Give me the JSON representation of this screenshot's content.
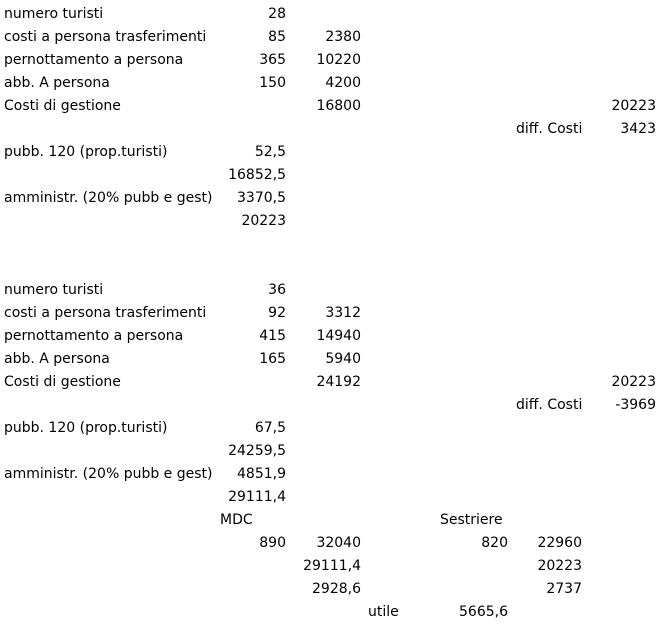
{
  "block1": {
    "row1": {
      "label": "numero turisti",
      "b": "28"
    },
    "row2": {
      "label": "costi a persona trasferimenti",
      "b": "85",
      "c": "2380"
    },
    "row3": {
      "label": "pernottamento a persona",
      "b": "365",
      "c": "10220"
    },
    "row4": {
      "label": "abb. A persona",
      "b": "150",
      "c": "4200"
    },
    "row5": {
      "label": "Costi di gestione",
      "c": "16800",
      "h": "20223"
    },
    "row6": {
      "g": "diff. Costi",
      "h": "3423"
    },
    "row7": {
      "label": "pubb. 120 (prop.turisti)",
      "b": "52,5"
    },
    "row8": {
      "b": "16852,5"
    },
    "row9": {
      "label": "amministr. (20% pubb e gest)",
      "b": "3370,5"
    },
    "row10": {
      "b": "20223"
    }
  },
  "block2": {
    "row1": {
      "label": "numero turisti",
      "b": "36"
    },
    "row2": {
      "label": "costi a persona trasferimenti",
      "b": "92",
      "c": "3312"
    },
    "row3": {
      "label": "pernottamento a persona",
      "b": "415",
      "c": "14940"
    },
    "row4": {
      "label": "abb. A persona",
      "b": "165",
      "c": "5940"
    },
    "row5": {
      "label": "Costi di gestione",
      "c": "24192",
      "h": "20223"
    },
    "row6": {
      "g": "diff. Costi",
      "h": "-3969"
    },
    "row7": {
      "label": "pubb. 120 (prop.turisti)",
      "b": "67,5"
    },
    "row8": {
      "b": "24259,5"
    },
    "row9": {
      "label": "amministr. (20% pubb e gest)",
      "b": "4851,9"
    },
    "row10": {
      "b": "29111,4"
    }
  },
  "compare": {
    "mdc_label": "MDC",
    "sestriere_label": "Sestriere",
    "mdc_b": "890",
    "mdc_c": "32040",
    "sest_e": "820",
    "sest_f": "22960",
    "mdc_c2": "29111,4",
    "sest_f2": "20223",
    "mdc_c3": "2928,6",
    "sest_f3": "2737",
    "utile_label": "utile",
    "utile_value": "5665,6"
  }
}
